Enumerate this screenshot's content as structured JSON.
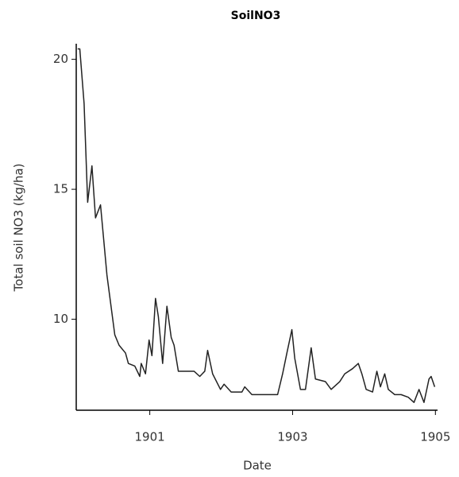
{
  "chart_data": {
    "type": "line",
    "title": "SoilNO3",
    "x_label": "Date",
    "y_label": "Total soil NO3 (kg/ha)",
    "x": [
      1899.99,
      1900.02,
      1900.08,
      1900.13,
      1900.19,
      1900.24,
      1900.31,
      1900.4,
      1900.51,
      1900.57,
      1900.66,
      1900.7,
      1900.79,
      1900.86,
      1900.88,
      1900.94,
      1900.99,
      1901.03,
      1901.08,
      1901.12,
      1901.18,
      1901.24,
      1901.3,
      1901.34,
      1901.4,
      1901.51,
      1901.62,
      1901.7,
      1901.77,
      1901.81,
      1901.88,
      1901.99,
      1902.04,
      1902.14,
      1902.29,
      1902.33,
      1902.43,
      1902.62,
      1902.79,
      1902.86,
      1902.92,
      1902.99,
      1903.03,
      1903.11,
      1903.18,
      1903.26,
      1903.32,
      1903.46,
      1903.54,
      1903.66,
      1903.73,
      1903.84,
      1903.92,
      1903.97,
      1904.03,
      1904.12,
      1904.18,
      1904.23,
      1904.29,
      1904.34,
      1904.43,
      1904.52,
      1904.62,
      1904.7,
      1904.77,
      1904.84,
      1904.91,
      1904.94,
      1904.99
    ],
    "series": [
      {
        "color": "#222222",
        "values": [
          20.4,
          20.4,
          18.3,
          14.5,
          15.9,
          13.9,
          14.4,
          11.7,
          9.4,
          9.0,
          8.7,
          8.3,
          8.2,
          7.8,
          8.3,
          7.9,
          9.2,
          8.6,
          10.8,
          10.1,
          8.3,
          10.5,
          9.3,
          9.0,
          8.0,
          8.0,
          8.0,
          7.8,
          8.0,
          8.8,
          7.9,
          7.3,
          7.5,
          7.2,
          7.2,
          7.4,
          7.1,
          7.1,
          7.1,
          7.9,
          8.7,
          9.6,
          8.5,
          7.3,
          7.3,
          8.9,
          7.7,
          7.6,
          7.3,
          7.6,
          7.9,
          8.1,
          8.3,
          7.9,
          7.3,
          7.2,
          8.0,
          7.4,
          7.9,
          7.3,
          7.1,
          7.1,
          7.0,
          6.8,
          7.3,
          6.8,
          7.7,
          7.8,
          7.4
        ]
      }
    ],
    "xlim": [
      1899.97,
      1905.03
    ],
    "xticks": [
      1901,
      1903,
      1905
    ],
    "ylim": [
      6.5,
      20.6
    ],
    "yticks": [
      10,
      15,
      20
    ]
  }
}
